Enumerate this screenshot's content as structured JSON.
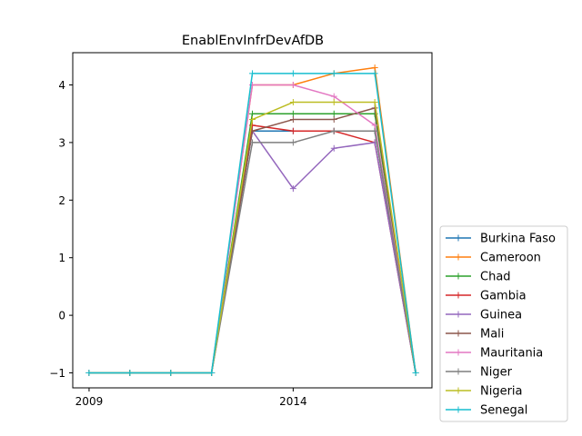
{
  "chart_data": {
    "type": "line",
    "title": "EnablEnvInfrDevAfDB",
    "xlabel": "",
    "ylabel": "",
    "x": [
      2009,
      2010,
      2011,
      2012,
      2013,
      2014,
      2015,
      2016,
      2017
    ],
    "xlim": [
      2008.6,
      2017.4
    ],
    "ylim": [
      -1.26,
      4.56
    ],
    "xticks": [
      2009,
      2014
    ],
    "yticks": [
      -1,
      0,
      1,
      2,
      3,
      4
    ],
    "ytick_labels": [
      "−1",
      "0",
      "1",
      "2",
      "3",
      "4"
    ],
    "legend_position": "lower-right-outside",
    "grid": false,
    "series": [
      {
        "name": "Burkina Faso",
        "color": "#1f77b4",
        "values": [
          -1,
          -1,
          -1,
          -1,
          3.2,
          3.2,
          3.2,
          3.2,
          -1
        ]
      },
      {
        "name": "Cameroon",
        "color": "#ff7f0e",
        "values": [
          -1,
          -1,
          -1,
          -1,
          4.0,
          4.0,
          4.2,
          4.3,
          -1
        ]
      },
      {
        "name": "Chad",
        "color": "#2ca02c",
        "values": [
          -1,
          -1,
          -1,
          -1,
          3.5,
          3.5,
          3.5,
          3.5,
          -1
        ]
      },
      {
        "name": "Gambia",
        "color": "#d62728",
        "values": [
          -1,
          -1,
          -1,
          -1,
          3.3,
          3.2,
          3.2,
          3.0,
          -1
        ]
      },
      {
        "name": "Guinea",
        "color": "#9467bd",
        "values": [
          -1,
          -1,
          -1,
          -1,
          3.2,
          2.2,
          2.9,
          3.0,
          -1
        ]
      },
      {
        "name": "Mali",
        "color": "#8c564b",
        "values": [
          -1,
          -1,
          -1,
          -1,
          3.2,
          3.4,
          3.4,
          3.6,
          -1
        ]
      },
      {
        "name": "Mauritania",
        "color": "#e377c2",
        "values": [
          -1,
          -1,
          -1,
          -1,
          4.0,
          4.0,
          3.8,
          3.3,
          -1
        ]
      },
      {
        "name": "Niger",
        "color": "#7f7f7f",
        "values": [
          -1,
          -1,
          -1,
          -1,
          3.0,
          3.0,
          3.2,
          3.2,
          -1
        ]
      },
      {
        "name": "Nigeria",
        "color": "#bcbd22",
        "values": [
          -1,
          -1,
          -1,
          -1,
          3.4,
          3.7,
          3.7,
          3.7,
          -1
        ]
      },
      {
        "name": "Senegal",
        "color": "#17becf",
        "values": [
          -1,
          -1,
          -1,
          -1,
          4.2,
          4.2,
          4.2,
          4.2,
          -1
        ]
      }
    ]
  }
}
